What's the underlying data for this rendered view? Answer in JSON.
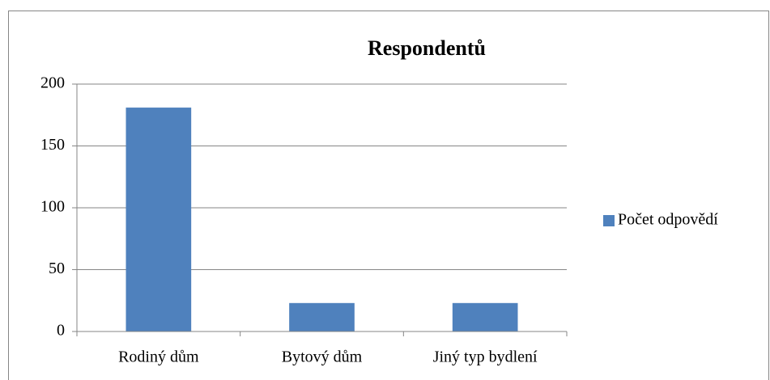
{
  "chart_data": {
    "type": "bar",
    "title": "Respondentů",
    "categories": [
      "Rodiný dům",
      "Bytový dům",
      "Jiný typ bydlení"
    ],
    "series": [
      {
        "name": "Počet odpovědí",
        "color": "#4f81bd",
        "values": [
          181,
          23,
          23
        ]
      }
    ],
    "ylim": [
      0,
      200
    ],
    "yticks": [
      0,
      50,
      100,
      150,
      200
    ],
    "grid": true,
    "legend": "right"
  }
}
